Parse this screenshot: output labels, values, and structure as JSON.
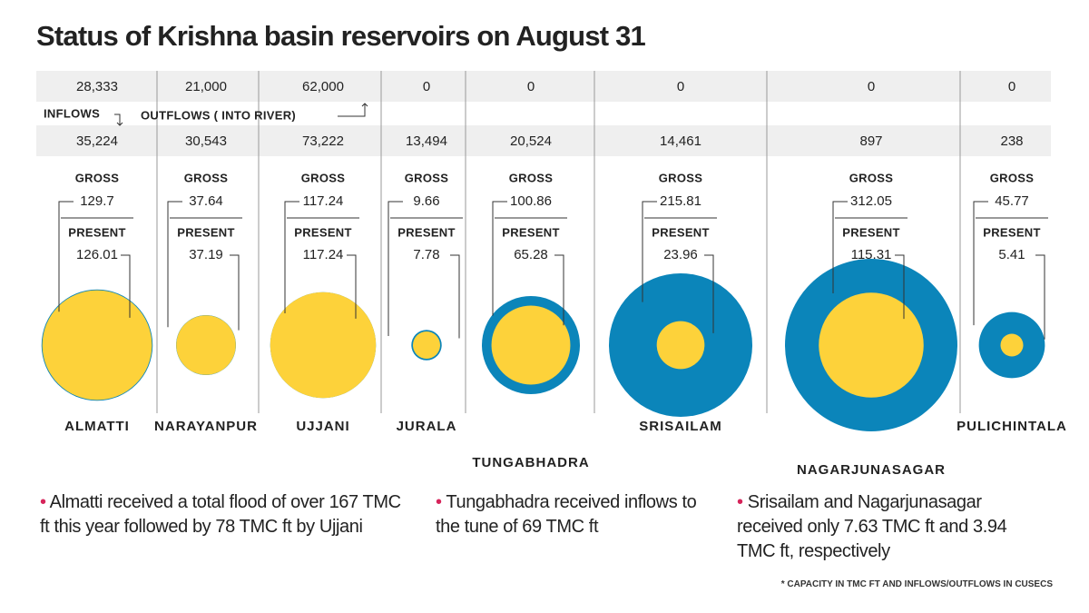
{
  "chart_data": {
    "type": "nested-circles",
    "title": "Status of Krishna basin reservoirs on August 31",
    "categories": [
      "ALMATTI",
      "NARAYANPUR",
      "UJJANI",
      "JURALA",
      "TUNGABHADRA",
      "SRISAILAM",
      "NAGARJUNASAGAR",
      "PULICHINTALA"
    ],
    "series": [
      {
        "name": "OUTFLOWS ( INTO RIVER)",
        "values": [
          28333,
          21000,
          62000,
          0,
          0,
          0,
          0,
          0
        ],
        "value_labels": [
          "28,333",
          "21,000",
          "62,000",
          "0",
          "0",
          "0",
          "0",
          "0"
        ]
      },
      {
        "name": "INFLOWS",
        "values": [
          35224,
          30543,
          73222,
          13494,
          20524,
          14461,
          897,
          238
        ],
        "value_labels": [
          "35,224",
          "30,543",
          "73,222",
          "13,494",
          "20,524",
          "14,461",
          "897",
          "238"
        ]
      },
      {
        "name": "GROSS",
        "color": "#0b85ba",
        "values": [
          129.7,
          37.64,
          117.24,
          9.66,
          100.86,
          215.81,
          312.05,
          45.77
        ]
      },
      {
        "name": "PRESENT",
        "color": "#fdd23a",
        "values": [
          126.01,
          37.19,
          117.24,
          7.78,
          65.28,
          23.96,
          115.31,
          5.41
        ]
      }
    ],
    "notes": [
      "Almatti received a total flood of over 167 TMC ft this year followed by 78 TMC ft by Ujjani",
      "Tungabhadra received inflows to the tune of 69 TMC ft",
      "Srisailam and Nagarjunasagar received only 7.63 TMC ft and 3.94 TMC ft, respectively"
    ],
    "footnote": "* CAPACITY IN TMC FT AND INFLOWS/OUTFLOWS IN CUSECS"
  }
}
